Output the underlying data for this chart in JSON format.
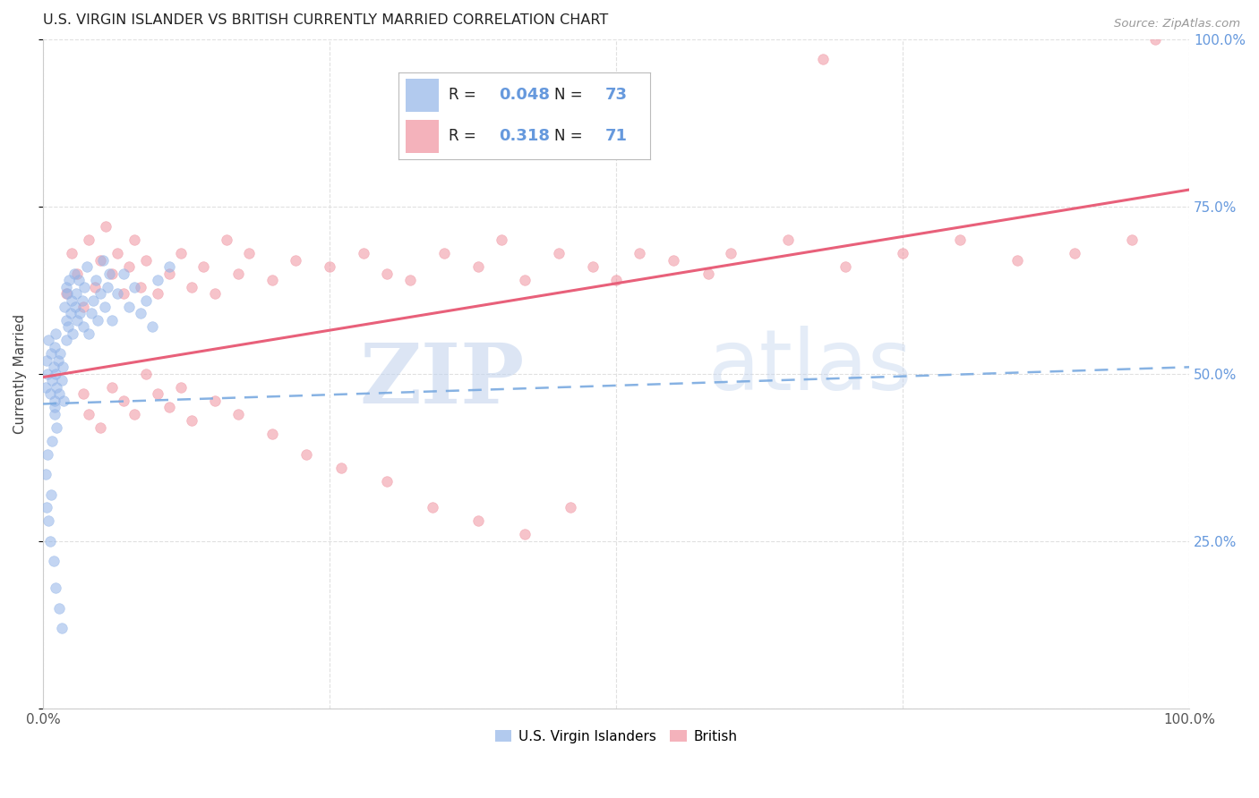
{
  "title": "U.S. VIRGIN ISLANDER VS BRITISH CURRENTLY MARRIED CORRELATION CHART",
  "source": "Source: ZipAtlas.com",
  "ylabel": "Currently Married",
  "watermark_zip": "ZIP",
  "watermark_atlas": "atlas",
  "legend_r1": "0.048",
  "legend_n1": "73",
  "legend_r2": "0.318",
  "legend_n2": "71",
  "blue_color": "#92b4e8",
  "pink_color": "#f0929f",
  "blue_line_color": "#7aaae0",
  "pink_line_color": "#e8607a",
  "right_tick_color": "#6699dd",
  "grid_color": "#e0e0e0",
  "scatter_alpha": 0.55,
  "scatter_size": 70,
  "blue_x": [
    0.002,
    0.003,
    0.004,
    0.005,
    0.006,
    0.007,
    0.008,
    0.009,
    0.01,
    0.01,
    0.01,
    0.011,
    0.011,
    0.012,
    0.013,
    0.014,
    0.015,
    0.016,
    0.017,
    0.018,
    0.019,
    0.02,
    0.02,
    0.02,
    0.021,
    0.022,
    0.023,
    0.024,
    0.025,
    0.026,
    0.027,
    0.028,
    0.029,
    0.03,
    0.031,
    0.032,
    0.034,
    0.035,
    0.036,
    0.038,
    0.04,
    0.042,
    0.044,
    0.046,
    0.048,
    0.05,
    0.052,
    0.054,
    0.056,
    0.058,
    0.06,
    0.065,
    0.07,
    0.075,
    0.08,
    0.085,
    0.09,
    0.095,
    0.1,
    0.11,
    0.002,
    0.003,
    0.004,
    0.005,
    0.006,
    0.007,
    0.008,
    0.009,
    0.01,
    0.011,
    0.012,
    0.014,
    0.016
  ],
  "blue_y": [
    0.48,
    0.52,
    0.5,
    0.55,
    0.47,
    0.53,
    0.49,
    0.51,
    0.46,
    0.54,
    0.44,
    0.5,
    0.56,
    0.48,
    0.52,
    0.47,
    0.53,
    0.49,
    0.51,
    0.46,
    0.6,
    0.63,
    0.58,
    0.55,
    0.62,
    0.57,
    0.64,
    0.59,
    0.61,
    0.56,
    0.65,
    0.6,
    0.62,
    0.58,
    0.64,
    0.59,
    0.61,
    0.57,
    0.63,
    0.66,
    0.56,
    0.59,
    0.61,
    0.64,
    0.58,
    0.62,
    0.67,
    0.6,
    0.63,
    0.65,
    0.58,
    0.62,
    0.65,
    0.6,
    0.63,
    0.59,
    0.61,
    0.57,
    0.64,
    0.66,
    0.35,
    0.3,
    0.38,
    0.28,
    0.25,
    0.32,
    0.4,
    0.22,
    0.45,
    0.18,
    0.42,
    0.15,
    0.12
  ],
  "pink_x": [
    0.02,
    0.025,
    0.03,
    0.035,
    0.04,
    0.045,
    0.05,
    0.055,
    0.06,
    0.065,
    0.07,
    0.075,
    0.08,
    0.085,
    0.09,
    0.1,
    0.11,
    0.12,
    0.13,
    0.14,
    0.15,
    0.16,
    0.17,
    0.18,
    0.2,
    0.22,
    0.25,
    0.28,
    0.3,
    0.32,
    0.35,
    0.38,
    0.4,
    0.42,
    0.45,
    0.48,
    0.5,
    0.52,
    0.55,
    0.58,
    0.6,
    0.65,
    0.7,
    0.75,
    0.8,
    0.85,
    0.9,
    0.95,
    0.68,
    0.97,
    0.035,
    0.04,
    0.05,
    0.06,
    0.07,
    0.08,
    0.09,
    0.1,
    0.11,
    0.12,
    0.13,
    0.15,
    0.17,
    0.2,
    0.23,
    0.26,
    0.3,
    0.34,
    0.38,
    0.42,
    0.46
  ],
  "pink_y": [
    0.62,
    0.68,
    0.65,
    0.6,
    0.7,
    0.63,
    0.67,
    0.72,
    0.65,
    0.68,
    0.62,
    0.66,
    0.7,
    0.63,
    0.67,
    0.62,
    0.65,
    0.68,
    0.63,
    0.66,
    0.62,
    0.7,
    0.65,
    0.68,
    0.64,
    0.67,
    0.66,
    0.68,
    0.65,
    0.64,
    0.68,
    0.66,
    0.7,
    0.64,
    0.68,
    0.66,
    0.64,
    0.68,
    0.67,
    0.65,
    0.68,
    0.7,
    0.66,
    0.68,
    0.7,
    0.67,
    0.68,
    0.7,
    0.97,
    1.0,
    0.47,
    0.44,
    0.42,
    0.48,
    0.46,
    0.44,
    0.5,
    0.47,
    0.45,
    0.48,
    0.43,
    0.46,
    0.44,
    0.41,
    0.38,
    0.36,
    0.34,
    0.3,
    0.28,
    0.26,
    0.3
  ],
  "blue_line_y0": 0.455,
  "blue_line_y1": 0.51,
  "pink_line_y0": 0.495,
  "pink_line_y1": 0.775,
  "xlim": [
    0.0,
    1.0
  ],
  "ylim": [
    0.0,
    1.0
  ]
}
